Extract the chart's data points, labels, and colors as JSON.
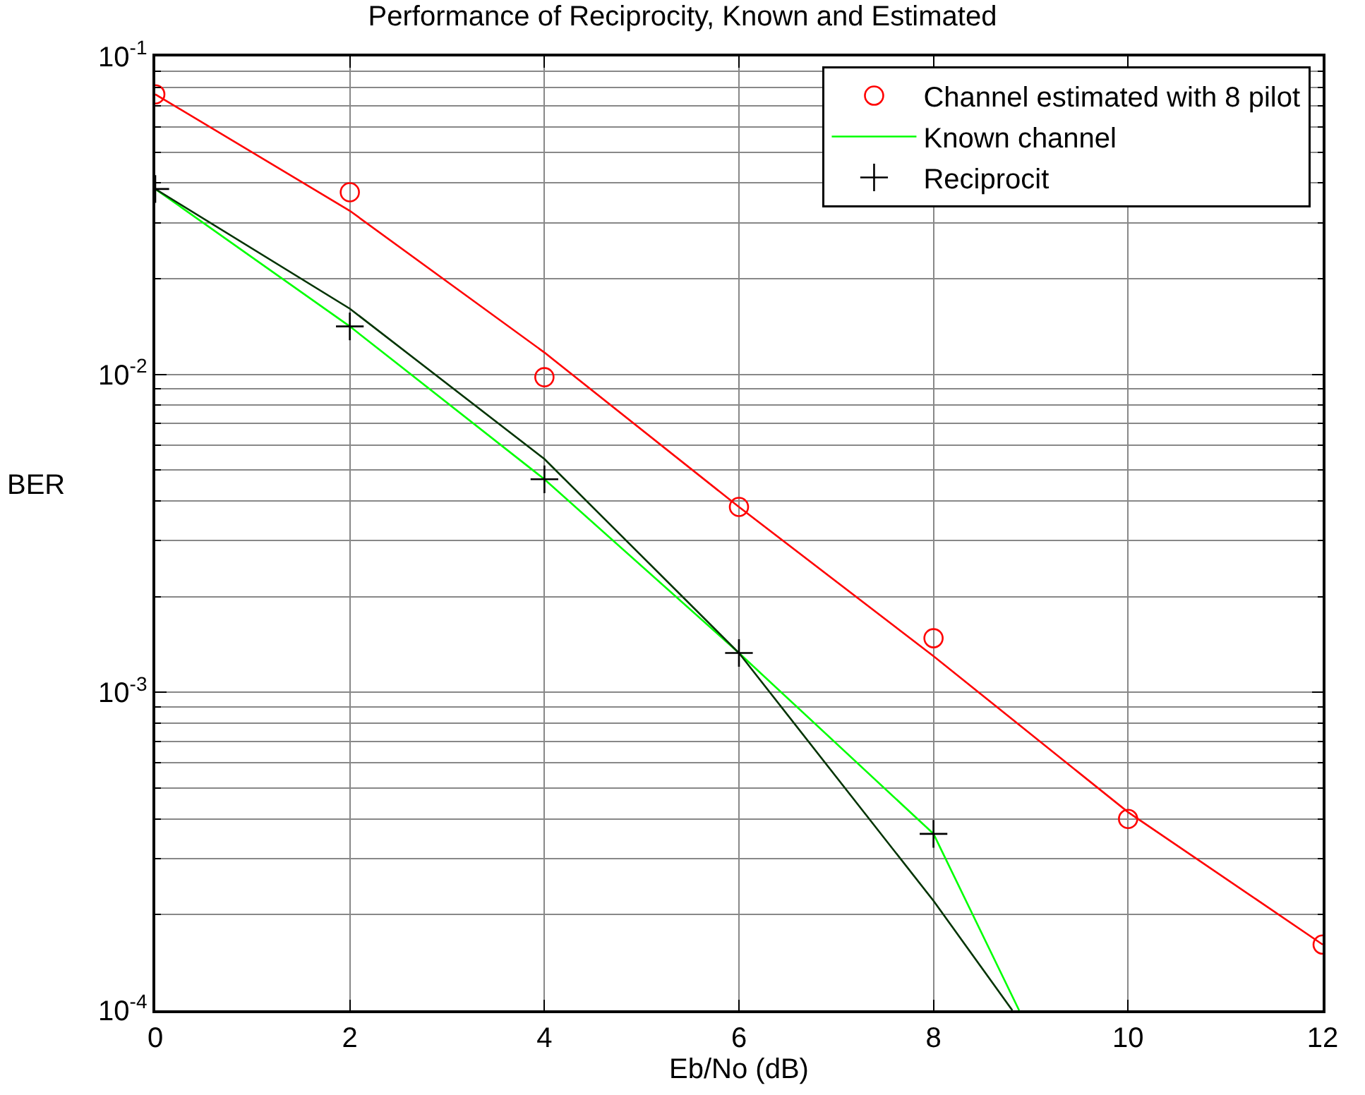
{
  "chart_data": {
    "type": "line",
    "title": "Performance of Reciprocity, Known and Estimated",
    "xlabel": "Eb/No (dB)",
    "ylabel": "BER",
    "x": [
      0,
      2,
      4,
      6,
      8,
      10,
      12
    ],
    "series": [
      {
        "name": "Channel estimated with 8 pilot",
        "type": "scatter",
        "marker": "circle",
        "color": "#ff0000",
        "values": [
          0.076,
          0.0374,
          0.0098,
          0.00383,
          0.00148,
          0.0004,
          0.000161
        ]
      },
      {
        "name": "Known channel",
        "marker": "none",
        "color": "#00ff00",
        "x": [
          0,
          2,
          4,
          6,
          8,
          8.88
        ],
        "values": [
          0.0383,
          0.01416,
          0.00468,
          0.00133,
          0.000359,
          0.0001
        ]
      },
      {
        "name": "Reciprocit",
        "type": "scatter",
        "marker": "cross",
        "color": "#000000",
        "x": [
          0,
          2,
          4,
          6,
          8
        ],
        "values": [
          0.0383,
          0.01416,
          0.00468,
          0.00133,
          0.000359
        ]
      },
      {
        "marker": "none",
        "color": "#ff0000",
        "values": [
          0.076,
          0.0327,
          0.01172,
          0.00383,
          0.0013,
          0.00042,
          0.000161
        ]
      },
      {
        "marker": "none",
        "color": "#003300",
        "x": [
          0,
          2,
          4,
          6,
          8,
          8.81
        ],
        "values": [
          0.0383,
          0.0161,
          0.00542,
          0.00133,
          0.000221,
          0.0001
        ]
      }
    ],
    "log": "y",
    "xlim": [
      0,
      12
    ],
    "xticks": [
      0,
      2,
      4,
      6,
      8,
      10,
      12
    ],
    "ylim": [
      0.0001,
      0.1
    ],
    "yticks": [
      {
        "value": 0.0001,
        "label": "10$^{-4}$"
      },
      {
        "value": 0.001,
        "label": "10$^{-3}$"
      },
      {
        "value": 0.01,
        "label": "10$^{-2}$"
      },
      {
        "value": 0.1,
        "label": "10$^{-1}$"
      }
    ],
    "grid": true,
    "legend": "top right"
  }
}
